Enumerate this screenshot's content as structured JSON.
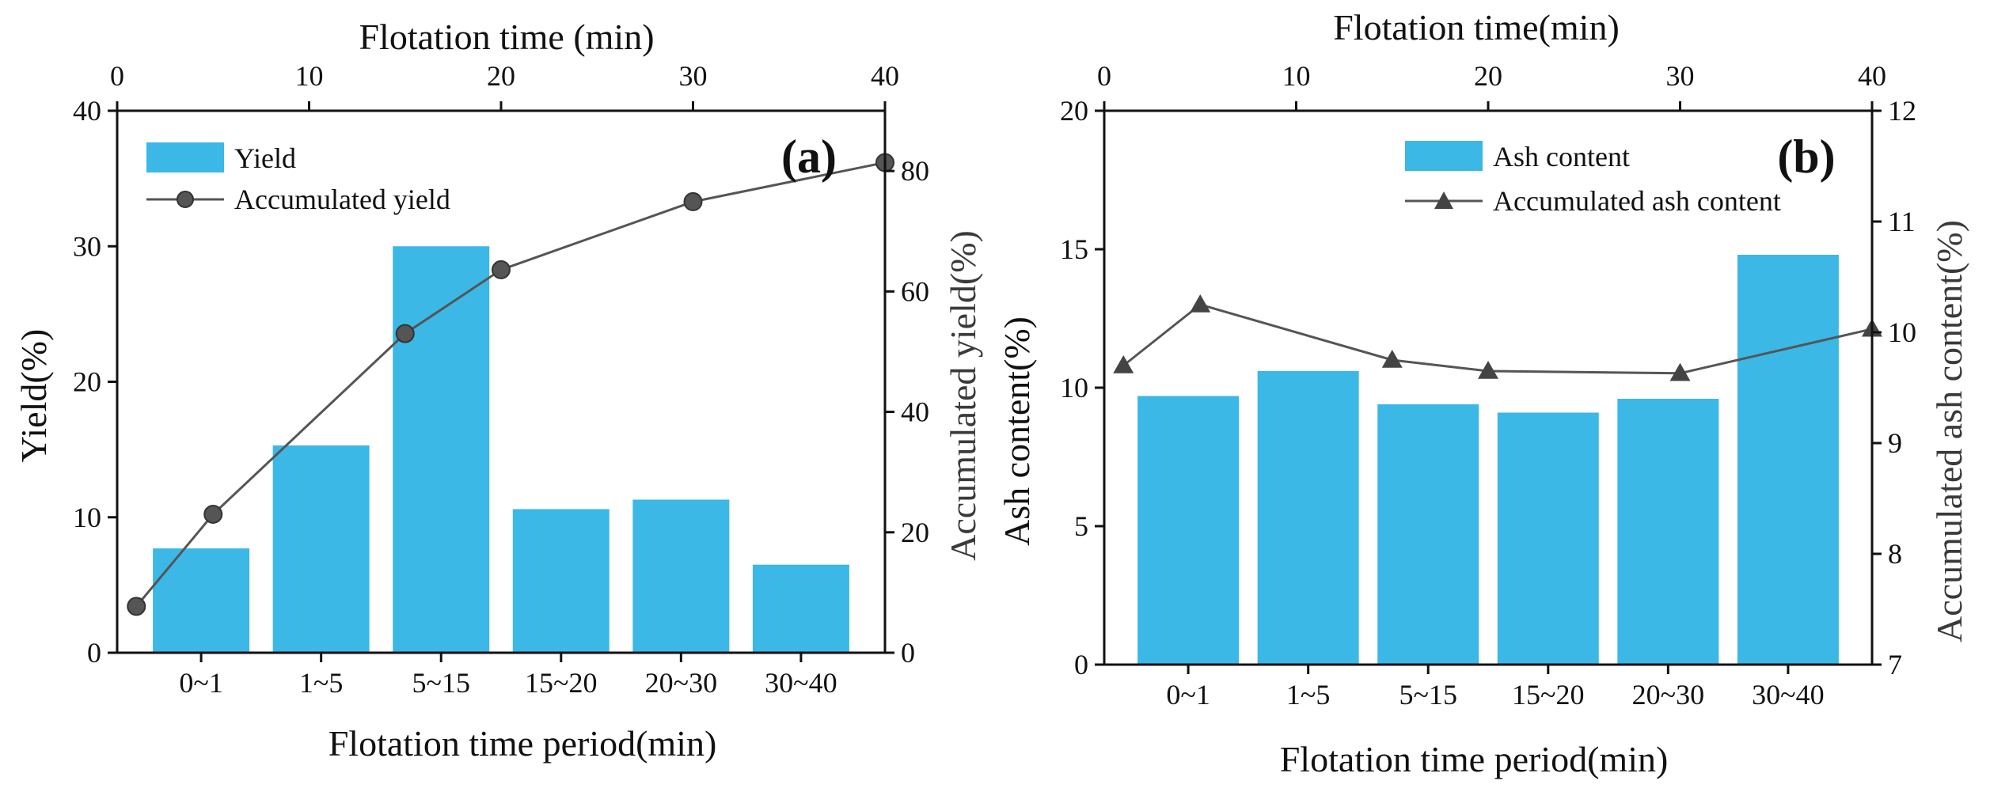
{
  "colors": {
    "bar": "#3bb8e6",
    "line": "#555555",
    "marker": "#444444",
    "axis": "#111111"
  },
  "chart_data": [
    {
      "panel": "a",
      "type": "bar",
      "categories": [
        "0~1",
        "1~5",
        "5~15",
        "15~20",
        "20~30",
        "30~40"
      ],
      "series": [
        {
          "name": "Yield",
          "kind": "bar",
          "axis": "left",
          "values": [
            7.7,
            15.3,
            30.0,
            10.6,
            11.3,
            6.5
          ]
        },
        {
          "name": "Accumulated yield",
          "kind": "line",
          "marker": "circle",
          "axis": "right",
          "x": [
            1,
            5,
            15,
            20,
            30,
            40
          ],
          "values": [
            7.7,
            23.0,
            53.0,
            63.6,
            74.9,
            81.4
          ]
        }
      ],
      "xlabel": "Flotation time period(min)",
      "ylabel": "Yield(%)",
      "ylabel_right": "Accumulated yield(%)",
      "xlabel_top": "Flotation time (min)",
      "ylim": [
        0,
        40
      ],
      "yticks": [
        0,
        10,
        20,
        30,
        40
      ],
      "ylim_right": [
        0,
        90
      ],
      "yticks_right": [
        0,
        20,
        40,
        60,
        80
      ],
      "xlim_top": [
        0,
        40
      ],
      "xticks_top": [
        0,
        10,
        20,
        30,
        40
      ],
      "legend_position": "top-left",
      "annotation": "(a)"
    },
    {
      "panel": "b",
      "type": "bar",
      "categories": [
        "0~1",
        "1~5",
        "5~15",
        "15~20",
        "20~30",
        "30~40"
      ],
      "series": [
        {
          "name": "Ash content",
          "kind": "bar",
          "axis": "left",
          "values": [
            9.7,
            10.6,
            9.4,
            9.1,
            9.6,
            14.8
          ]
        },
        {
          "name": "Accumulated ash content",
          "kind": "line",
          "marker": "triangle",
          "axis": "right",
          "x": [
            1,
            5,
            15,
            20,
            30,
            40
          ],
          "values": [
            9.7,
            10.25,
            9.75,
            9.65,
            9.63,
            10.03
          ]
        }
      ],
      "xlabel": "Flotation time period(min)",
      "ylabel": "Ash content(%)",
      "ylabel_right": "Accumulated ash content(%)",
      "xlabel_top": "Flotation time(min)",
      "ylim": [
        0,
        20
      ],
      "yticks": [
        0,
        5,
        10,
        15,
        20
      ],
      "ylim_right": [
        7,
        12
      ],
      "yticks_right": [
        7,
        8,
        9,
        10,
        11,
        12
      ],
      "xlim_top": [
        0,
        40
      ],
      "xticks_top": [
        0,
        10,
        20,
        30,
        40
      ],
      "legend_position": "top-right",
      "annotation": "(b)"
    }
  ]
}
